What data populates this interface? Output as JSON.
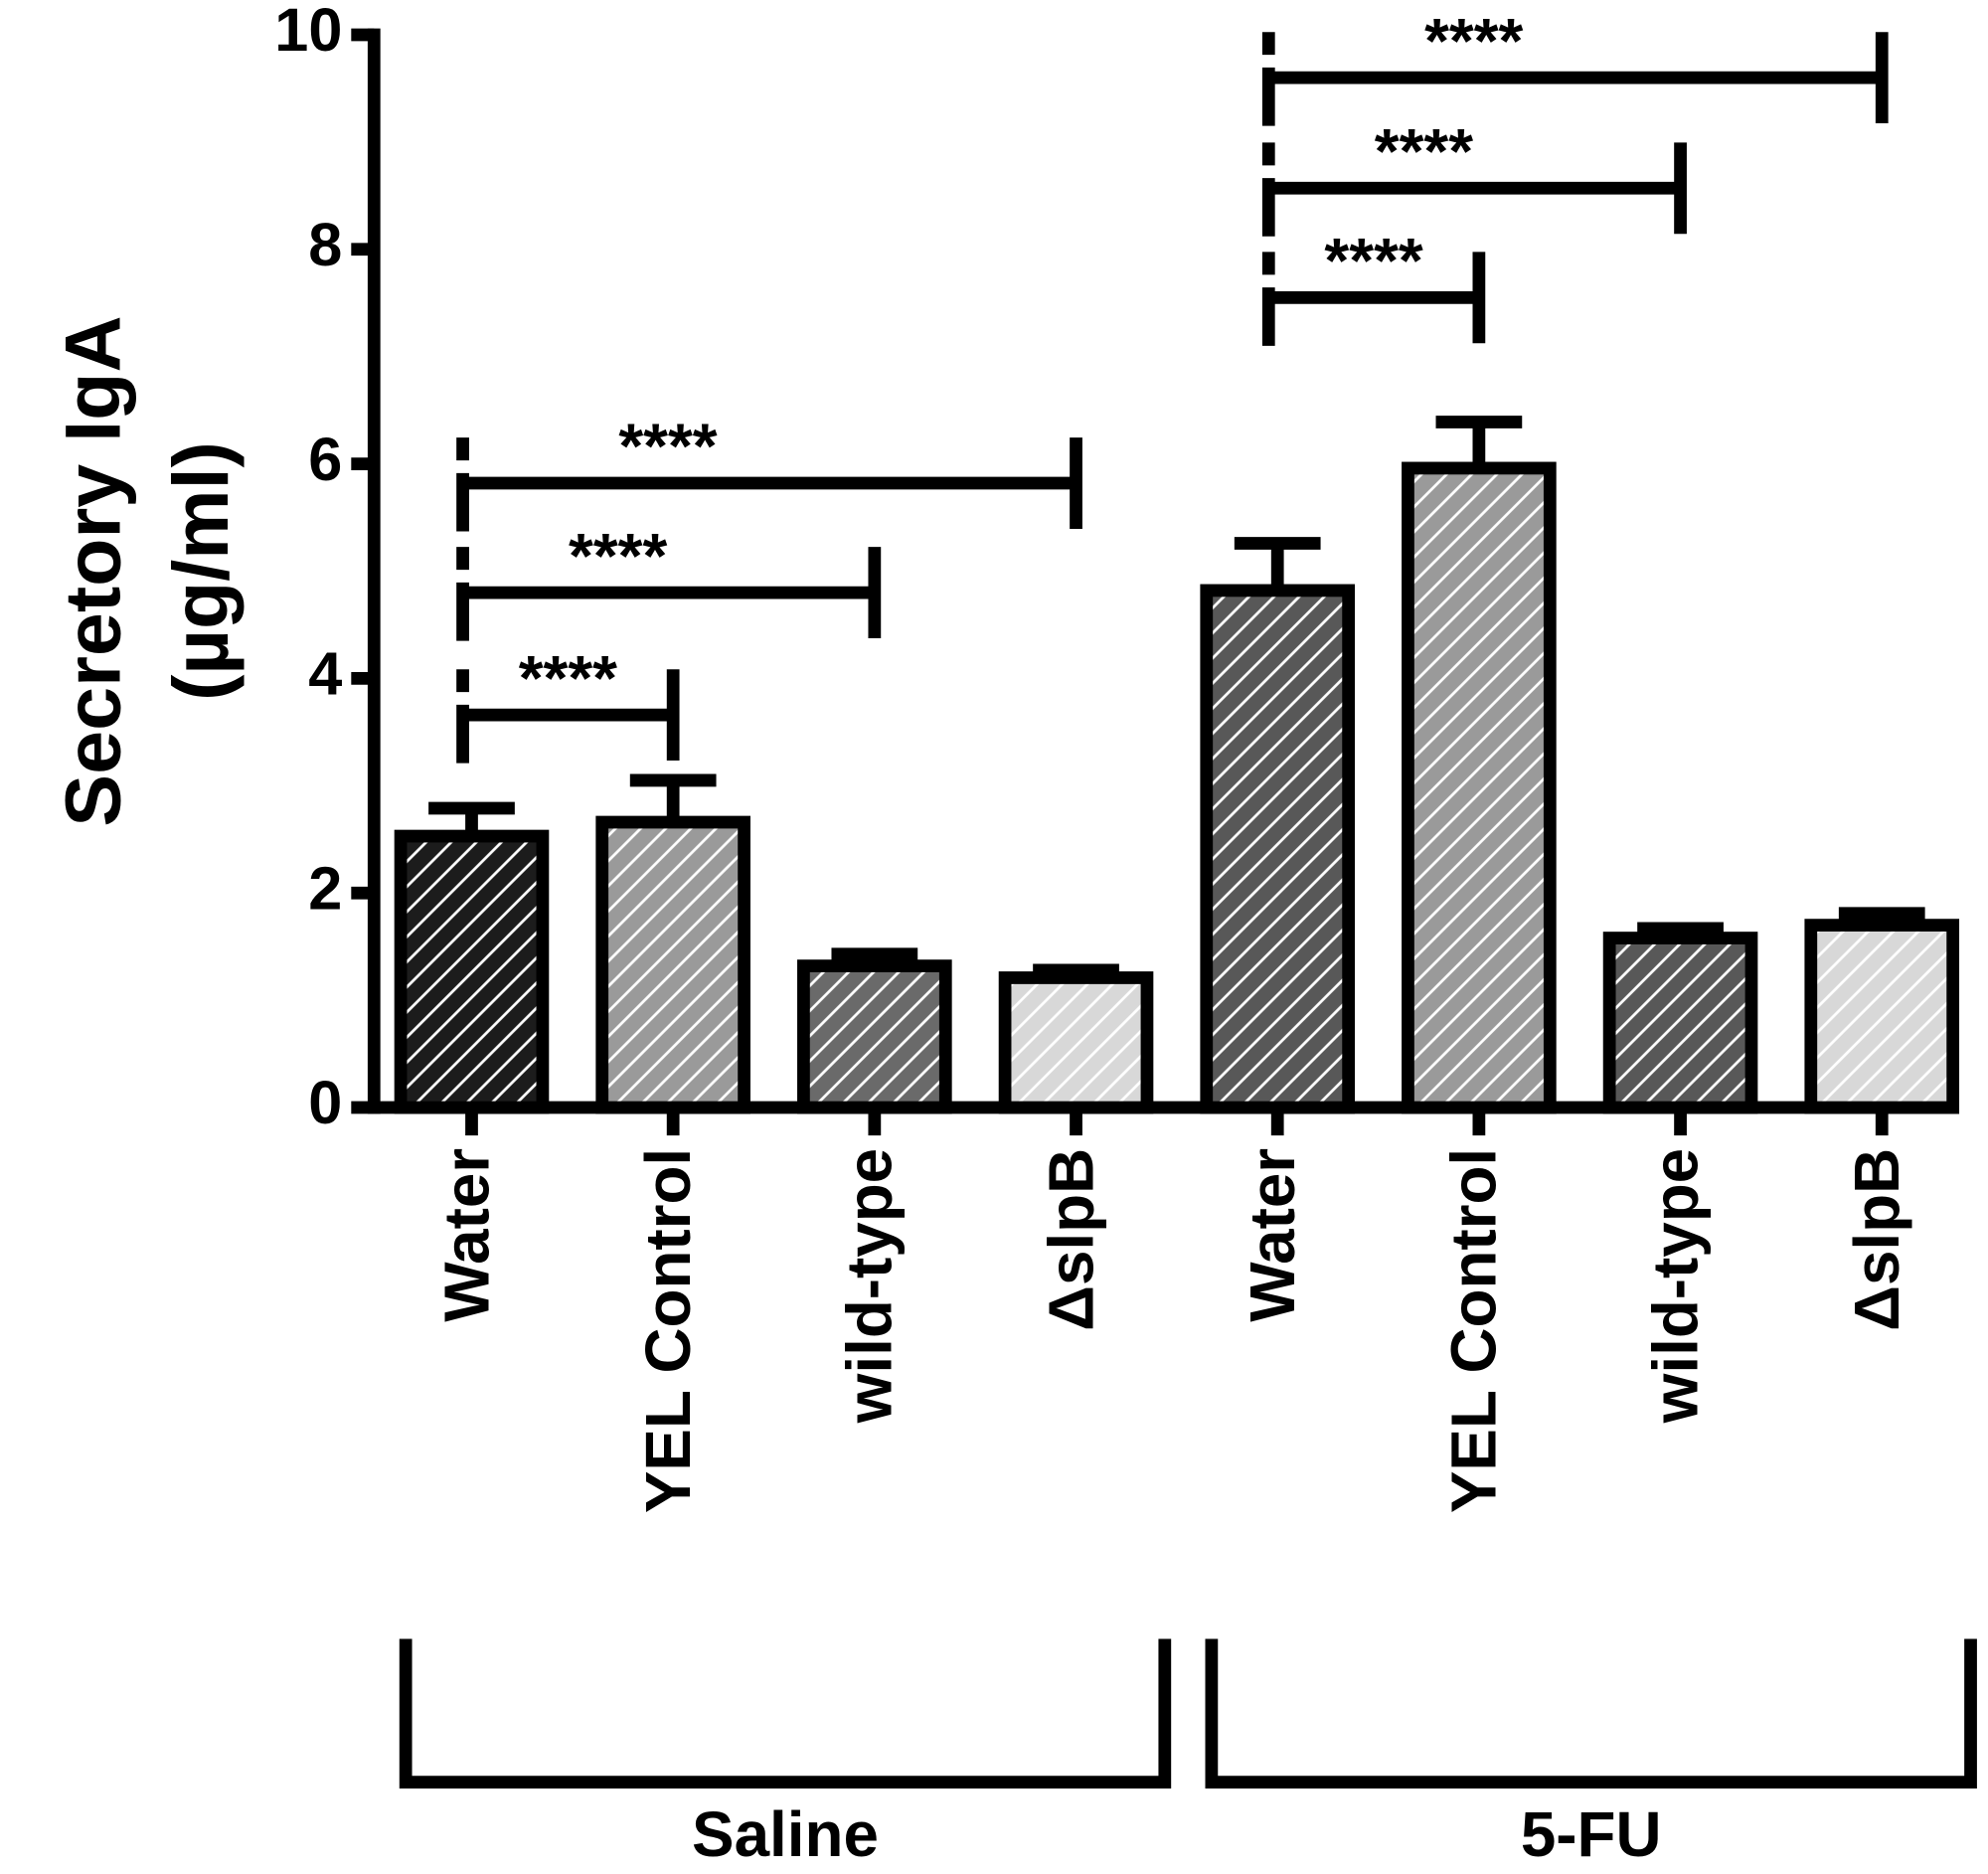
{
  "chart_data": {
    "type": "bar",
    "ylabel": [
      "Secretory IgA",
      "(µg/ml)"
    ],
    "ylim": [
      0,
      10
    ],
    "yticks": [
      0,
      2,
      4,
      6,
      8,
      10
    ],
    "groups": [
      {
        "name": "Saline",
        "categories": [
          "Water",
          "YEL Control",
          "wild-type",
          "ΔslpB"
        ],
        "values": [
          2.53,
          2.66,
          1.32,
          1.21
        ],
        "errors": [
          0.26,
          0.39,
          0.11,
          0.07
        ],
        "colors": [
          "#1c1c1c",
          "#9a9a9a",
          "#6a6a6a",
          "#d8d8d8"
        ],
        "comparisons": [
          {
            "from": 0,
            "to": 1,
            "y": 3.66,
            "label": "****"
          },
          {
            "from": 0,
            "to": 2,
            "y": 4.8,
            "label": "****"
          },
          {
            "from": 0,
            "to": 3,
            "y": 5.82,
            "label": "****"
          }
        ]
      },
      {
        "name": "5-FU",
        "categories": [
          "Water",
          "YEL Control",
          "wild-type",
          "ΔslpB"
        ],
        "values": [
          4.82,
          5.96,
          1.58,
          1.7
        ],
        "errors": [
          0.44,
          0.43,
          0.09,
          0.11
        ],
        "colors": [
          "#585858",
          "#9a9a9a",
          "#585858",
          "#d8d8d8"
        ],
        "comparisons": [
          {
            "from": 0,
            "to": 1,
            "y": 7.55,
            "label": "****"
          },
          {
            "from": 0,
            "to": 2,
            "y": 8.57,
            "label": "****"
          },
          {
            "from": 0,
            "to": 3,
            "y": 9.6,
            "label": "****"
          }
        ]
      }
    ]
  }
}
